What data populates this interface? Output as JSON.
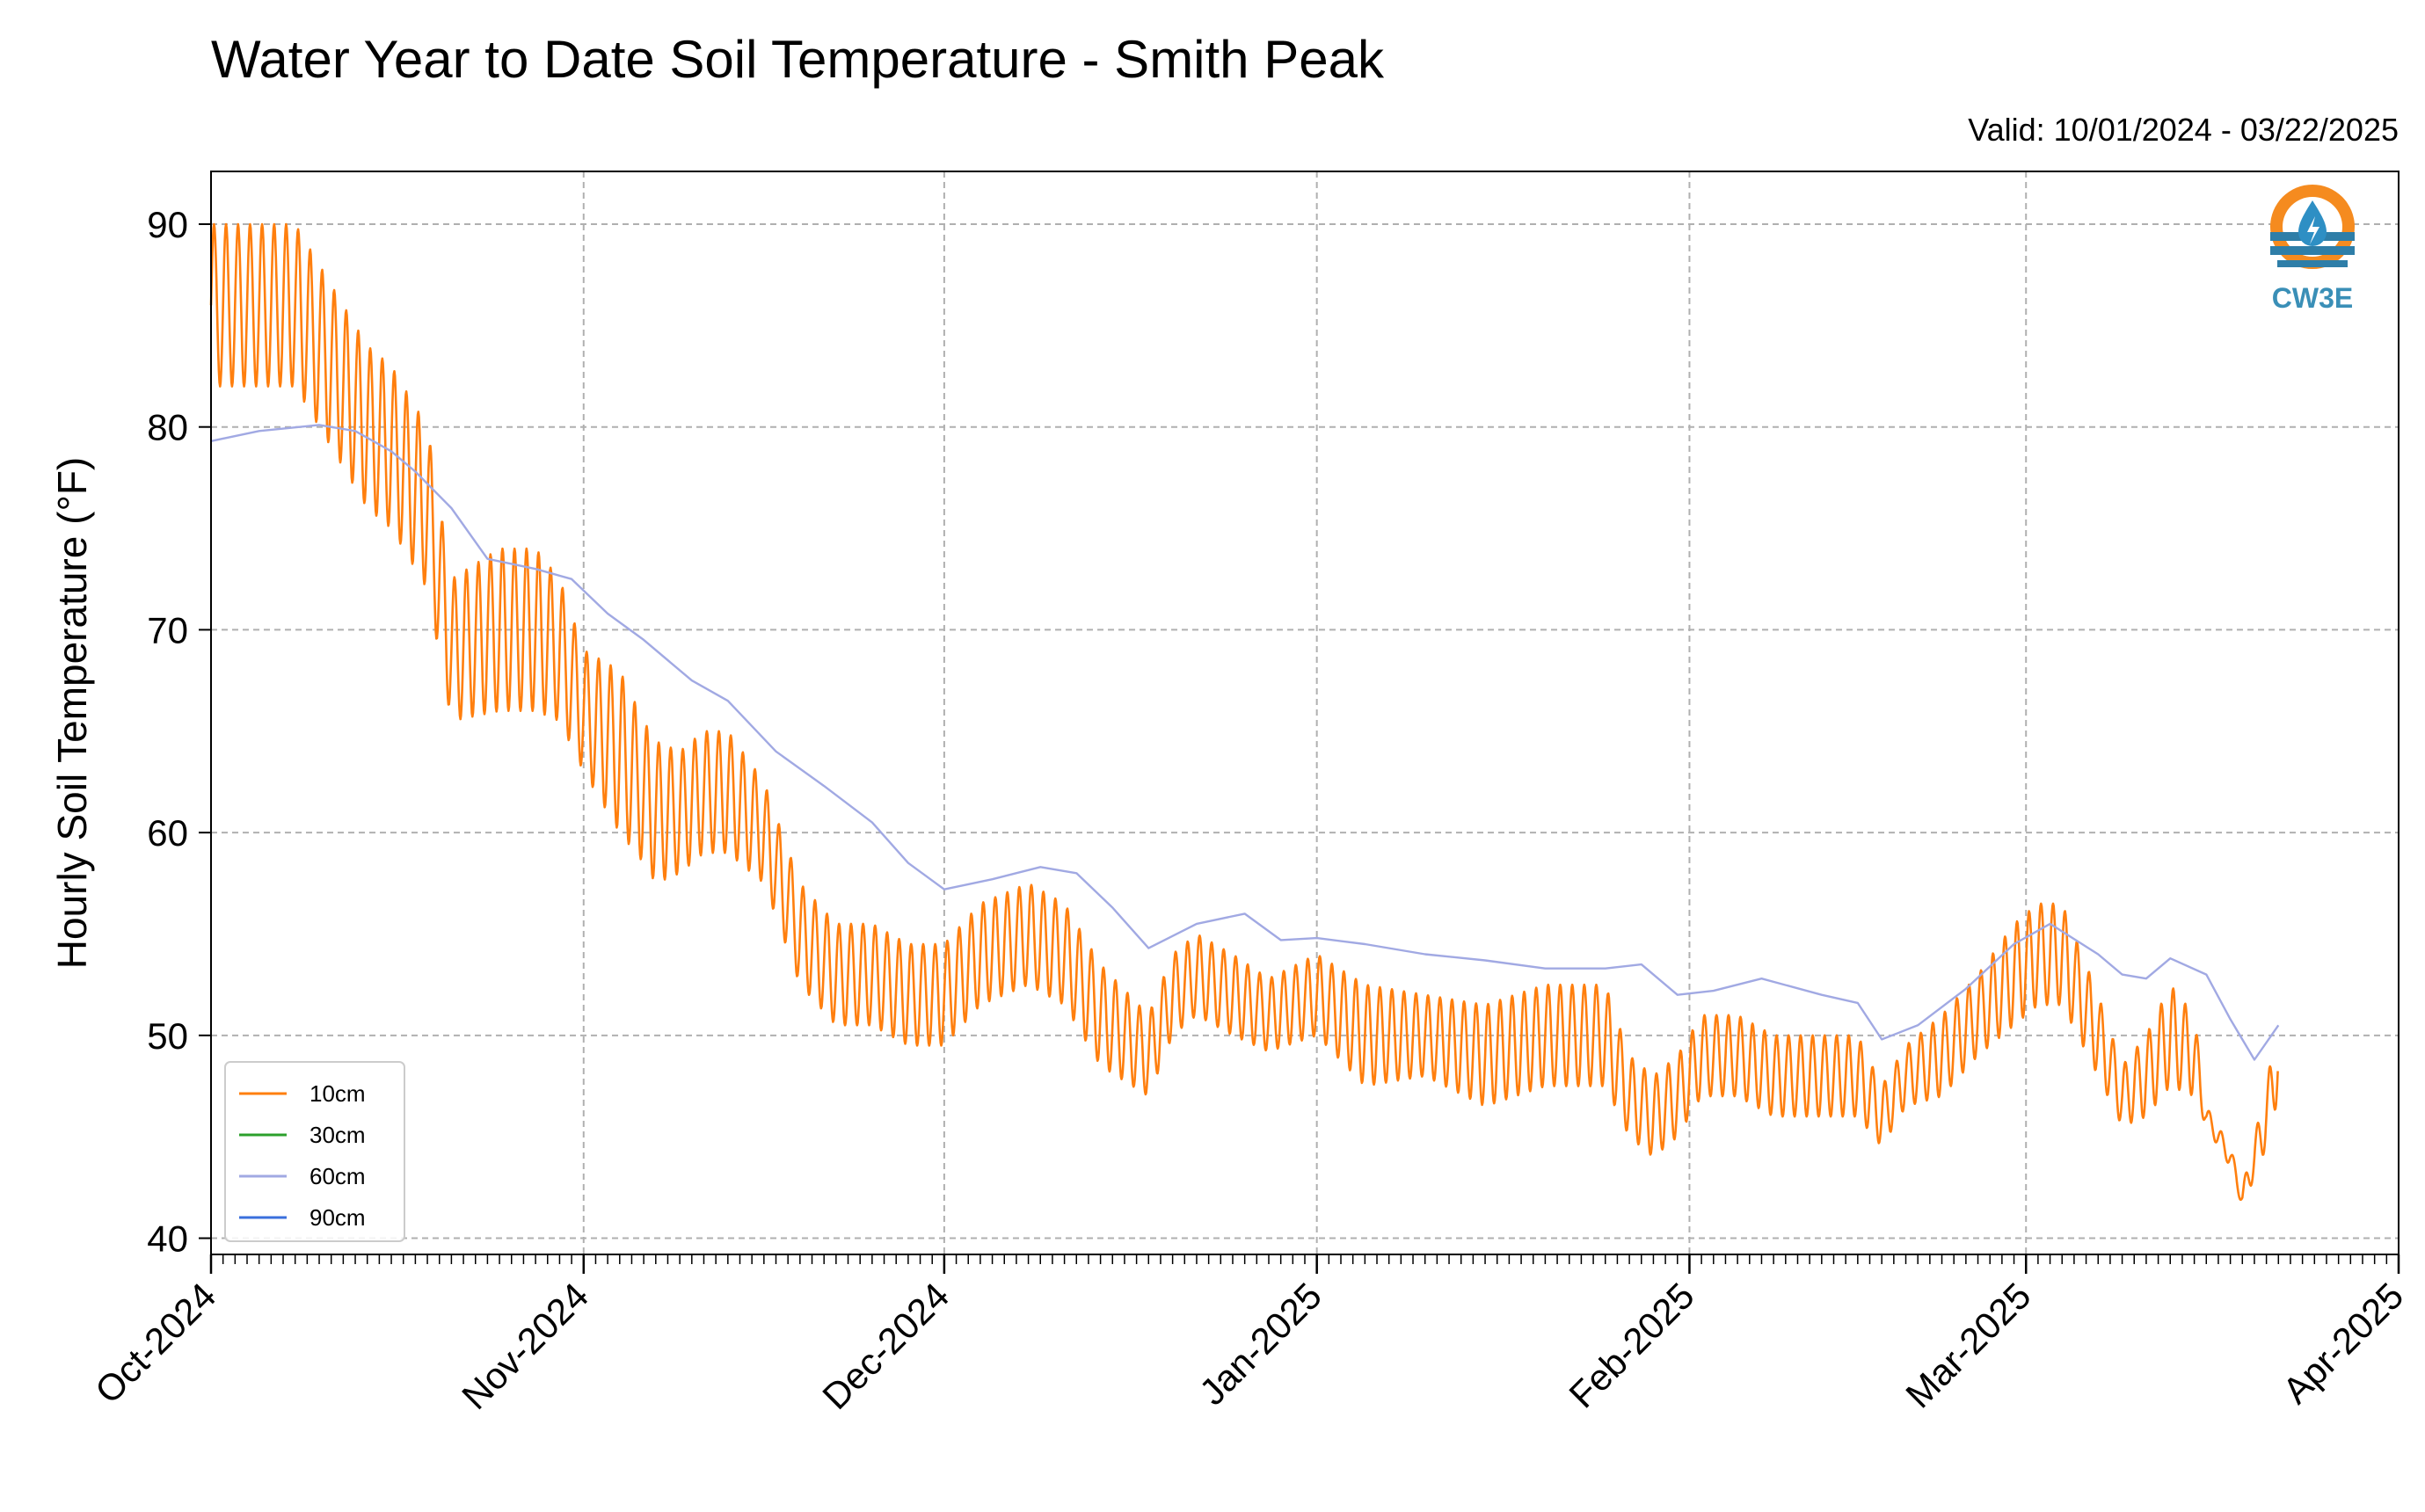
{
  "chart_data": {
    "type": "line",
    "title": "Water Year to Date Soil Temperature - Smith Peak",
    "subtitle": "Valid: 10/01/2024 - 03/22/2025",
    "ylabel": "Hourly Soil Temperature (°F)",
    "xlabel": "",
    "x_range": [
      "2024-10-01",
      "2025-04-01"
    ],
    "ylim": [
      39.2,
      92.6
    ],
    "y_ticks": [
      40,
      50,
      60,
      70,
      80,
      90
    ],
    "x_ticks": [
      {
        "date": "2024-10-01",
        "label": "Oct-2024"
      },
      {
        "date": "2024-11-01",
        "label": "Nov-2024"
      },
      {
        "date": "2024-12-01",
        "label": "Dec-2024"
      },
      {
        "date": "2025-01-01",
        "label": "Jan-2025"
      },
      {
        "date": "2025-02-01",
        "label": "Feb-2025"
      },
      {
        "date": "2025-03-01",
        "label": "Mar-2025"
      },
      {
        "date": "2025-04-01",
        "label": "Apr-2025"
      }
    ],
    "grid": true,
    "legend_position": "lower-left",
    "logo_text": "CW3E",
    "series": [
      {
        "name": "10cm",
        "color": "#ff7f0e",
        "note_shape": "daily oscillation",
        "x": [
          "2024-10-01",
          "2024-10-08",
          "2024-10-11",
          "2024-10-14",
          "2024-10-16",
          "2024-10-18",
          "2024-10-19",
          "2024-10-21",
          "2024-10-25",
          "2024-10-28",
          "2024-10-30",
          "2024-11-01",
          "2024-11-04",
          "2024-11-06",
          "2024-11-07",
          "2024-11-09",
          "2024-11-11",
          "2024-11-13",
          "2024-11-16",
          "2024-11-19",
          "2024-11-22",
          "2024-11-25",
          "2024-11-28",
          "2024-12-01",
          "2024-12-04",
          "2024-12-08",
          "2024-12-11",
          "2024-12-14",
          "2024-12-18",
          "2024-12-20",
          "2024-12-22",
          "2024-12-25",
          "2024-12-28",
          "2025-01-01",
          "2025-01-05",
          "2025-01-10",
          "2025-01-15",
          "2025-01-20",
          "2025-01-25",
          "2025-01-27",
          "2025-01-29",
          "2025-01-31",
          "2025-02-02",
          "2025-02-05",
          "2025-02-08",
          "2025-02-12",
          "2025-02-15",
          "2025-02-17",
          "2025-02-19",
          "2025-02-22",
          "2025-02-25",
          "2025-02-28",
          "2025-03-02",
          "2025-03-04",
          "2025-03-07",
          "2025-03-09",
          "2025-03-11",
          "2025-03-13",
          "2025-03-15",
          "2025-03-16",
          "2025-03-18",
          "2025-03-19",
          "2025-03-21",
          "2025-03-22"
        ],
        "y": [
          86,
          86,
          83,
          80,
          79,
          77,
          76,
          69,
          70,
          70,
          69,
          66,
          64,
          62,
          61,
          61,
          62,
          62,
          60,
          55,
          53,
          53,
          52,
          52,
          54,
          55,
          54,
          51,
          49,
          52,
          53,
          52,
          51,
          52,
          50,
          50,
          49,
          50,
          50,
          47,
          46,
          47,
          49,
          49,
          48,
          48,
          48,
          46,
          48,
          49,
          51,
          53,
          54,
          54,
          50,
          47,
          48,
          50,
          49,
          46,
          44,
          42,
          46,
          49
        ],
        "amplitude": [
          4,
          4,
          4,
          4,
          4,
          4,
          4,
          3.5,
          4,
          4,
          3.5,
          3,
          4,
          3.5,
          3.5,
          3,
          3,
          3,
          2.5,
          2.5,
          2.5,
          2.5,
          2.5,
          2.5,
          2.5,
          2.5,
          2.5,
          2.5,
          2,
          2,
          2,
          2,
          1.8,
          2,
          2.5,
          2,
          2.5,
          2.5,
          2.5,
          2,
          2,
          2,
          2,
          2,
          2,
          2,
          2,
          1.5,
          1.5,
          2,
          2,
          2.5,
          2.5,
          2.5,
          2,
          1.5,
          2,
          2.5,
          2,
          0.5,
          0.5,
          0.5,
          1.5,
          2
        ]
      },
      {
        "name": "30cm",
        "color": "#2ca02c",
        "x": [],
        "y": []
      },
      {
        "name": "60cm",
        "color": "#a1a9e3",
        "x": [
          "2024-10-01",
          "2024-10-05",
          "2024-10-10",
          "2024-10-13",
          "2024-10-16",
          "2024-10-18",
          "2024-10-21",
          "2024-10-24",
          "2024-10-28",
          "2024-10-31",
          "2024-11-03",
          "2024-11-06",
          "2024-11-10",
          "2024-11-13",
          "2024-11-17",
          "2024-11-21",
          "2024-11-25",
          "2024-11-28",
          "2024-12-01",
          "2024-12-05",
          "2024-12-09",
          "2024-12-12",
          "2024-12-15",
          "2024-12-18",
          "2024-12-22",
          "2024-12-26",
          "2024-12-29",
          "2025-01-01",
          "2025-01-05",
          "2025-01-10",
          "2025-01-15",
          "2025-01-20",
          "2025-01-25",
          "2025-01-28",
          "2025-01-31",
          "2025-02-03",
          "2025-02-07",
          "2025-02-12",
          "2025-02-15",
          "2025-02-17",
          "2025-02-20",
          "2025-02-24",
          "2025-02-28",
          "2025-03-03",
          "2025-03-07",
          "2025-03-09",
          "2025-03-11",
          "2025-03-13",
          "2025-03-16",
          "2025-03-18",
          "2025-03-20",
          "2025-03-22"
        ],
        "y": [
          79.3,
          79.8,
          80.1,
          79.8,
          78.8,
          77.8,
          76.0,
          73.5,
          73.0,
          72.5,
          70.8,
          69.5,
          67.5,
          66.5,
          64.0,
          62.3,
          60.5,
          58.5,
          57.2,
          57.7,
          58.3,
          58.0,
          56.3,
          54.3,
          55.5,
          56.0,
          54.7,
          54.8,
          54.5,
          54.0,
          53.7,
          53.3,
          53.3,
          53.5,
          52.0,
          52.2,
          52.8,
          52.0,
          51.6,
          49.8,
          50.5,
          52.3,
          54.5,
          55.5,
          54.0,
          53.0,
          52.8,
          53.8,
          53.0,
          50.8,
          48.8,
          50.5
        ]
      },
      {
        "name": "90cm",
        "color": "#3a6fdc",
        "x": [],
        "y": []
      }
    ]
  }
}
